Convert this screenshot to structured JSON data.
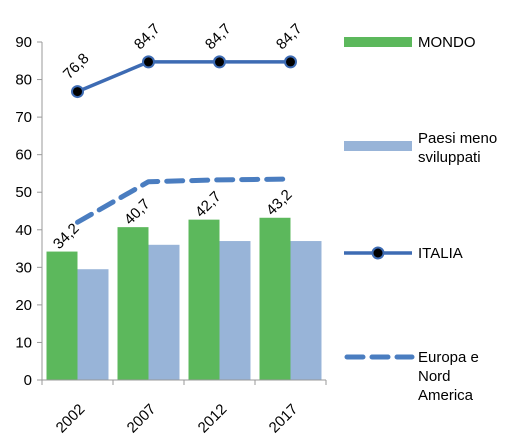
{
  "chart_data": {
    "type": "bar",
    "categories": [
      "2002",
      "2007",
      "2012",
      "2017"
    ],
    "ylim": [
      0,
      90
    ],
    "yticks": [
      0,
      10,
      20,
      30,
      40,
      50,
      60,
      70,
      80,
      90
    ],
    "grid": false,
    "legend_position": "right",
    "series": [
      {
        "name": "MONDO",
        "kind": "bar",
        "color": "#5cb85c",
        "values": [
          34.2,
          40.7,
          42.7,
          43.2
        ],
        "labels": [
          "34,2",
          "40,7",
          "42,7",
          "43,2"
        ]
      },
      {
        "name": "Paesi meno sviluppati",
        "legend_lines": [
          "Paesi meno",
          "sviluppati"
        ],
        "kind": "bar",
        "color": "#98b4d8",
        "values": [
          29.5,
          36.0,
          37.0,
          37.0
        ]
      },
      {
        "name": "ITALIA",
        "kind": "line-markers",
        "color": "#3d6bb3",
        "values": [
          76.8,
          84.7,
          84.7,
          84.7
        ],
        "labels": [
          "76,8",
          "84,7",
          "84,7",
          "84,7"
        ]
      },
      {
        "name": "Europa e Nord America",
        "legend_lines": [
          "Europa e",
          "Nord",
          "America"
        ],
        "kind": "dashed-line",
        "color": "#4a7dc0",
        "values": [
          42.0,
          52.8,
          53.3,
          53.5
        ]
      }
    ]
  }
}
